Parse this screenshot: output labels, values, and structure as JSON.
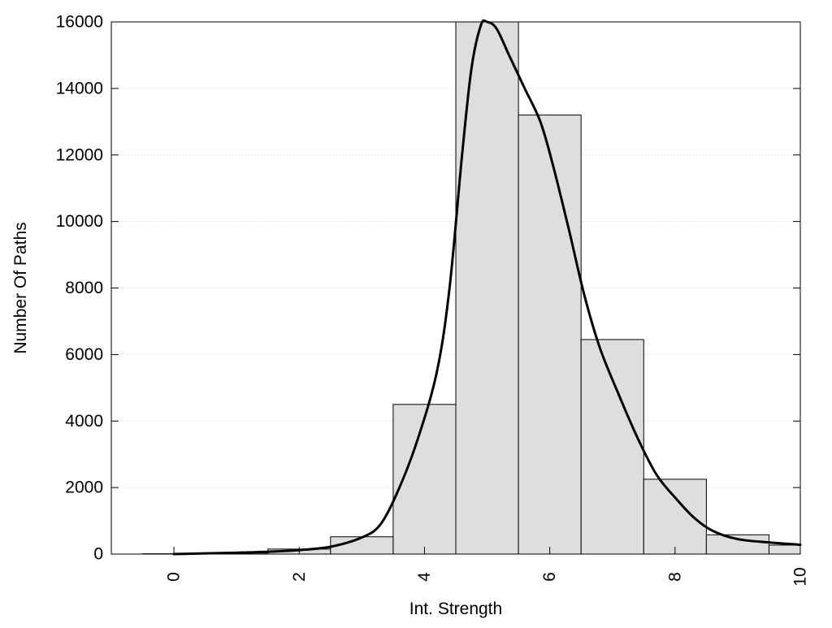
{
  "chart_data": {
    "type": "bar",
    "xlabel": "Int. Strength",
    "ylabel": "Number Of Paths",
    "xlim": [
      -1,
      10
    ],
    "ylim": [
      0,
      16000
    ],
    "x_ticks": [
      0,
      2,
      4,
      6,
      8,
      10
    ],
    "x_tick_labels": [
      "0",
      "2",
      "4",
      "6",
      "8",
      "10"
    ],
    "y_ticks": [
      0,
      2000,
      4000,
      6000,
      8000,
      10000,
      12000,
      14000,
      16000
    ],
    "y_tick_labels": [
      "0",
      "2000",
      "4000",
      "6000",
      "8000",
      "10000",
      "12000",
      "14000",
      "16000"
    ],
    "grid": "horizontal dotted",
    "bar_color": "#dedede",
    "line_color": "#000000",
    "histogram": {
      "bin_width": 1,
      "centers": [
        0,
        1,
        2,
        3,
        4,
        5,
        6,
        7,
        8,
        9,
        10
      ],
      "values": [
        10,
        30,
        150,
        520,
        4500,
        16000,
        13200,
        6450,
        2250,
        580,
        270
      ]
    },
    "density_curve": {
      "x": [
        0,
        0.5,
        1,
        1.5,
        2,
        2.5,
        3,
        3.3,
        3.6,
        3.9,
        4.2,
        4.4,
        4.6,
        4.75,
        4.9,
        5,
        5.15,
        5.35,
        5.6,
        5.85,
        6.05,
        6.3,
        6.55,
        6.8,
        7.1,
        7.4,
        7.7,
        8,
        8.3,
        8.6,
        9,
        9.5,
        10
      ],
      "y": [
        0,
        20,
        40,
        70,
        120,
        220,
        500,
        900,
        2000,
        3500,
        5500,
        8000,
        12000,
        14600,
        15900,
        16000,
        15800,
        15000,
        14000,
        13000,
        11700,
        9800,
        7800,
        6200,
        4800,
        3500,
        2400,
        1700,
        1100,
        700,
        450,
        350,
        280
      ]
    }
  }
}
